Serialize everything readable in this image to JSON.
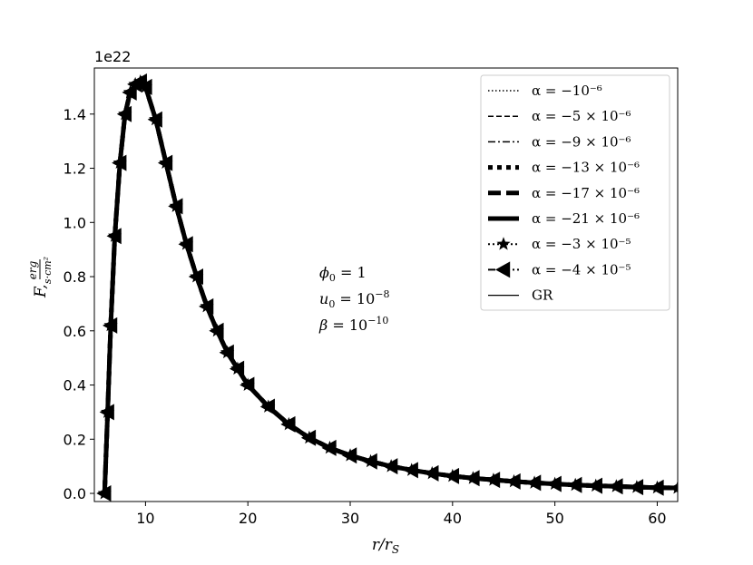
{
  "chart_data": {
    "type": "line",
    "xlabel": "r/r_S",
    "ylabel": "F, erg/(s·cm²)",
    "offset_text": "1e22",
    "xlim": [
      5,
      62
    ],
    "ylim": [
      -0.03,
      1.57
    ],
    "y_scale_factor": "1e22",
    "xticks": [
      10,
      20,
      30,
      40,
      50,
      60
    ],
    "yticks": [
      0.0,
      0.2,
      0.4,
      0.6,
      0.8,
      1.0,
      1.2,
      1.4
    ],
    "xtick_labels": [
      "10",
      "20",
      "30",
      "40",
      "50",
      "60"
    ],
    "ytick_labels": [
      "0.0",
      "0.2",
      "0.4",
      "0.6",
      "0.8",
      "1.0",
      "1.2",
      "1.4"
    ],
    "grid": false,
    "legend_position": "top-right",
    "annotations": [
      "φ₀ = 1",
      "u₀ = 10⁻⁸",
      "β = 10⁻¹⁰"
    ],
    "x": [
      6.0,
      6.3,
      6.6,
      7.0,
      7.5,
      8.0,
      8.5,
      9.0,
      9.5,
      10.0,
      11.0,
      12.0,
      13.0,
      14.0,
      15.0,
      16.0,
      17.0,
      18.0,
      19.0,
      20.0,
      22.0,
      24.0,
      26.0,
      28.0,
      30.0,
      32.0,
      34.0,
      36.0,
      38.0,
      40.0,
      42.0,
      44.0,
      46.0,
      48.0,
      50.0,
      52.0,
      54.0,
      56.0,
      58.0,
      60.0,
      62.0
    ],
    "series": [
      {
        "name": "α = −10⁻⁶",
        "style": "dotted",
        "values": [
          0.0,
          0.3,
          0.62,
          0.95,
          1.22,
          1.4,
          1.48,
          1.51,
          1.52,
          1.5,
          1.38,
          1.22,
          1.06,
          0.92,
          0.8,
          0.69,
          0.6,
          0.52,
          0.46,
          0.4,
          0.32,
          0.255,
          0.205,
          0.168,
          0.14,
          0.118,
          0.1,
          0.086,
          0.074,
          0.064,
          0.056,
          0.05,
          0.044,
          0.039,
          0.035,
          0.031,
          0.028,
          0.026,
          0.023,
          0.021,
          0.02
        ]
      },
      {
        "name": "α = −5 × 10⁻⁶",
        "style": "dashed",
        "values": [
          0.0,
          0.3,
          0.62,
          0.95,
          1.22,
          1.4,
          1.48,
          1.51,
          1.52,
          1.5,
          1.38,
          1.22,
          1.06,
          0.92,
          0.8,
          0.69,
          0.6,
          0.52,
          0.46,
          0.4,
          0.32,
          0.255,
          0.205,
          0.168,
          0.14,
          0.118,
          0.1,
          0.086,
          0.074,
          0.064,
          0.056,
          0.05,
          0.044,
          0.039,
          0.035,
          0.031,
          0.028,
          0.026,
          0.023,
          0.021,
          0.02
        ]
      },
      {
        "name": "α = −9 × 10⁻⁶",
        "style": "dashdot",
        "values": [
          0.0,
          0.3,
          0.62,
          0.95,
          1.22,
          1.4,
          1.48,
          1.51,
          1.52,
          1.5,
          1.38,
          1.22,
          1.06,
          0.92,
          0.8,
          0.69,
          0.6,
          0.52,
          0.46,
          0.4,
          0.32,
          0.255,
          0.205,
          0.168,
          0.14,
          0.118,
          0.1,
          0.086,
          0.074,
          0.064,
          0.056,
          0.05,
          0.044,
          0.039,
          0.035,
          0.031,
          0.028,
          0.026,
          0.023,
          0.021,
          0.02
        ]
      },
      {
        "name": "α = −13 × 10⁻⁶",
        "style": "thick-dotted",
        "values": [
          0.0,
          0.3,
          0.62,
          0.95,
          1.22,
          1.4,
          1.48,
          1.51,
          1.52,
          1.5,
          1.38,
          1.22,
          1.06,
          0.92,
          0.8,
          0.69,
          0.6,
          0.52,
          0.46,
          0.4,
          0.32,
          0.255,
          0.205,
          0.168,
          0.14,
          0.118,
          0.1,
          0.086,
          0.074,
          0.064,
          0.056,
          0.05,
          0.044,
          0.039,
          0.035,
          0.031,
          0.028,
          0.026,
          0.023,
          0.021,
          0.02
        ]
      },
      {
        "name": "α = −17 × 10⁻⁶",
        "style": "thick-dashed",
        "values": [
          0.0,
          0.3,
          0.62,
          0.95,
          1.22,
          1.4,
          1.48,
          1.51,
          1.52,
          1.5,
          1.38,
          1.22,
          1.06,
          0.92,
          0.8,
          0.69,
          0.6,
          0.52,
          0.46,
          0.4,
          0.32,
          0.255,
          0.205,
          0.168,
          0.14,
          0.118,
          0.1,
          0.086,
          0.074,
          0.064,
          0.056,
          0.05,
          0.044,
          0.039,
          0.035,
          0.031,
          0.028,
          0.026,
          0.023,
          0.021,
          0.02
        ]
      },
      {
        "name": "α = −21 × 10⁻⁶",
        "style": "thick-solid",
        "values": [
          0.0,
          0.3,
          0.62,
          0.95,
          1.22,
          1.4,
          1.48,
          1.51,
          1.52,
          1.5,
          1.38,
          1.22,
          1.06,
          0.92,
          0.8,
          0.69,
          0.6,
          0.52,
          0.46,
          0.4,
          0.32,
          0.255,
          0.205,
          0.168,
          0.14,
          0.118,
          0.1,
          0.086,
          0.074,
          0.064,
          0.056,
          0.05,
          0.044,
          0.039,
          0.035,
          0.031,
          0.028,
          0.026,
          0.023,
          0.021,
          0.02
        ]
      },
      {
        "name": "α = −3 × 10⁻⁵",
        "style": "dotted-star",
        "values": [
          0.0,
          0.3,
          0.62,
          0.95,
          1.22,
          1.4,
          1.48,
          1.51,
          1.52,
          1.5,
          1.38,
          1.22,
          1.06,
          0.92,
          0.8,
          0.69,
          0.6,
          0.52,
          0.46,
          0.4,
          0.32,
          0.255,
          0.205,
          0.168,
          0.14,
          0.118,
          0.1,
          0.086,
          0.074,
          0.064,
          0.056,
          0.05,
          0.044,
          0.039,
          0.035,
          0.031,
          0.028,
          0.026,
          0.023,
          0.021,
          0.02
        ]
      },
      {
        "name": "α = −4 × 10⁻⁵",
        "style": "dashdot-triangle-left",
        "values": [
          0.0,
          0.3,
          0.62,
          0.95,
          1.22,
          1.4,
          1.48,
          1.51,
          1.52,
          1.5,
          1.38,
          1.22,
          1.06,
          0.92,
          0.8,
          0.69,
          0.6,
          0.52,
          0.46,
          0.4,
          0.32,
          0.255,
          0.205,
          0.168,
          0.14,
          0.118,
          0.1,
          0.086,
          0.074,
          0.064,
          0.056,
          0.05,
          0.044,
          0.039,
          0.035,
          0.031,
          0.028,
          0.026,
          0.023,
          0.021,
          0.02
        ]
      },
      {
        "name": "GR",
        "style": "solid",
        "values": [
          0.0,
          0.3,
          0.62,
          0.95,
          1.22,
          1.4,
          1.48,
          1.51,
          1.52,
          1.5,
          1.38,
          1.22,
          1.06,
          0.92,
          0.8,
          0.69,
          0.6,
          0.52,
          0.46,
          0.4,
          0.32,
          0.255,
          0.205,
          0.168,
          0.14,
          0.118,
          0.1,
          0.086,
          0.074,
          0.064,
          0.056,
          0.05,
          0.044,
          0.039,
          0.035,
          0.031,
          0.028,
          0.026,
          0.023,
          0.021,
          0.02
        ]
      }
    ]
  },
  "colors": {
    "line": "#000000",
    "background": "#ffffff",
    "legend_border": "#cccccc"
  }
}
